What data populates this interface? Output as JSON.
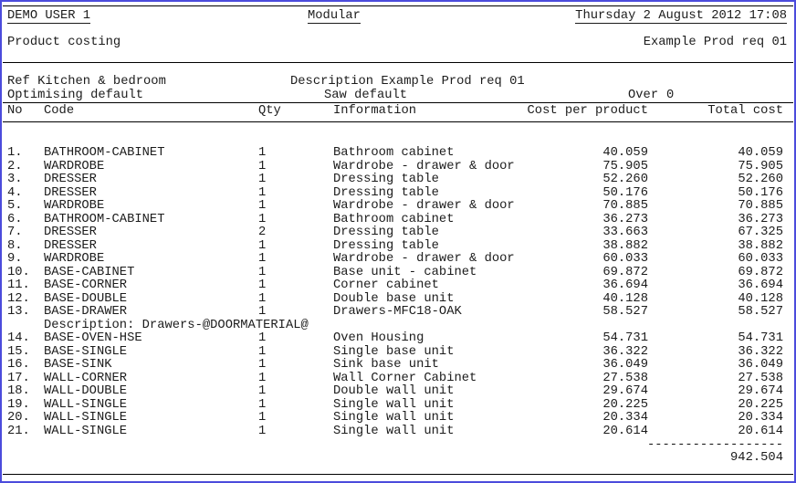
{
  "page": {
    "user": "DEMO USER 1",
    "module": "Modular",
    "datetime": "Thursday 2 August 2012 17:08",
    "report_title": "Product costing",
    "report_ref": "Example Prod req 01"
  },
  "meta": {
    "ref": "Ref Kitchen & bedroom",
    "description": "Description Example Prod req 01",
    "optimising": "Optimising default",
    "saw": "Saw default",
    "over_label": "Over",
    "over_value": "0"
  },
  "table": {
    "headers": {
      "no": "No",
      "code": "Code",
      "qty": "Qty",
      "information": "Information",
      "cost_per_product": "Cost per product",
      "total_cost": "Total cost"
    },
    "rows": [
      {
        "no": "1.",
        "code": "BATHROOM-CABINET",
        "qty": "1",
        "info": "Bathroom cabinet",
        "cpp": "40.059",
        "total": "40.059"
      },
      {
        "no": "2.",
        "code": "WARDROBE",
        "qty": "1",
        "info": "Wardrobe - drawer & door",
        "cpp": "75.905",
        "total": "75.905"
      },
      {
        "no": "3.",
        "code": "DRESSER",
        "qty": "1",
        "info": "Dressing table",
        "cpp": "52.260",
        "total": "52.260"
      },
      {
        "no": "4.",
        "code": "DRESSER",
        "qty": "1",
        "info": "Dressing table",
        "cpp": "50.176",
        "total": "50.176"
      },
      {
        "no": "5.",
        "code": "WARDROBE",
        "qty": "1",
        "info": "Wardrobe - drawer & door",
        "cpp": "70.885",
        "total": "70.885"
      },
      {
        "no": "6.",
        "code": "BATHROOM-CABINET",
        "qty": "1",
        "info": "Bathroom cabinet",
        "cpp": "36.273",
        "total": "36.273"
      },
      {
        "no": "7.",
        "code": "DRESSER",
        "qty": "2",
        "info": "Dressing table",
        "cpp": "33.663",
        "total": "67.325"
      },
      {
        "no": "8.",
        "code": "DRESSER",
        "qty": "1",
        "info": "Dressing table",
        "cpp": "38.882",
        "total": "38.882"
      },
      {
        "no": "9.",
        "code": "WARDROBE",
        "qty": "1",
        "info": "Wardrobe - drawer & door",
        "cpp": "60.033",
        "total": "60.033"
      },
      {
        "no": "10.",
        "code": "BASE-CABINET",
        "qty": "1",
        "info": "Base unit - cabinet",
        "cpp": "69.872",
        "total": "69.872"
      },
      {
        "no": "11.",
        "code": "BASE-CORNER",
        "qty": "1",
        "info": "Corner cabinet",
        "cpp": "36.694",
        "total": "36.694"
      },
      {
        "no": "12.",
        "code": "BASE-DOUBLE",
        "qty": "1",
        "info": "Double base unit",
        "cpp": "40.128",
        "total": "40.128"
      },
      {
        "no": "13.",
        "code": "BASE-DRAWER",
        "qty": "1",
        "info": "Drawers-MFC18-OAK",
        "cpp": "58.527",
        "total": "58.527",
        "note": "Description: Drawers-@DOORMATERIAL@"
      },
      {
        "no": "14.",
        "code": "BASE-OVEN-HSE",
        "qty": "1",
        "info": "Oven Housing",
        "cpp": "54.731",
        "total": "54.731"
      },
      {
        "no": "15.",
        "code": "BASE-SINGLE",
        "qty": "1",
        "info": "Single base unit",
        "cpp": "36.322",
        "total": "36.322"
      },
      {
        "no": "16.",
        "code": "BASE-SINK",
        "qty": "1",
        "info": "Sink base unit",
        "cpp": "36.049",
        "total": "36.049"
      },
      {
        "no": "17.",
        "code": "WALL-CORNER",
        "qty": "1",
        "info": "Wall Corner Cabinet",
        "cpp": "27.538",
        "total": "27.538"
      },
      {
        "no": "18.",
        "code": "WALL-DOUBLE",
        "qty": "1",
        "info": "Double wall unit",
        "cpp": "29.674",
        "total": "29.674"
      },
      {
        "no": "19.",
        "code": "WALL-SINGLE",
        "qty": "1",
        "info": "Single wall unit",
        "cpp": "20.225",
        "total": "20.225"
      },
      {
        "no": "20.",
        "code": "WALL-SINGLE",
        "qty": "1",
        "info": "Single wall unit",
        "cpp": "20.334",
        "total": "20.334"
      },
      {
        "no": "21.",
        "code": "WALL-SINGLE",
        "qty": "1",
        "info": "Single wall unit",
        "cpp": "20.614",
        "total": "20.614"
      }
    ],
    "total_separator": "------------------",
    "grand_total": "942.504"
  },
  "colors": {
    "frame_border": "#4b4bdc",
    "text": "#1c1c1c",
    "rule": "#000000"
  }
}
